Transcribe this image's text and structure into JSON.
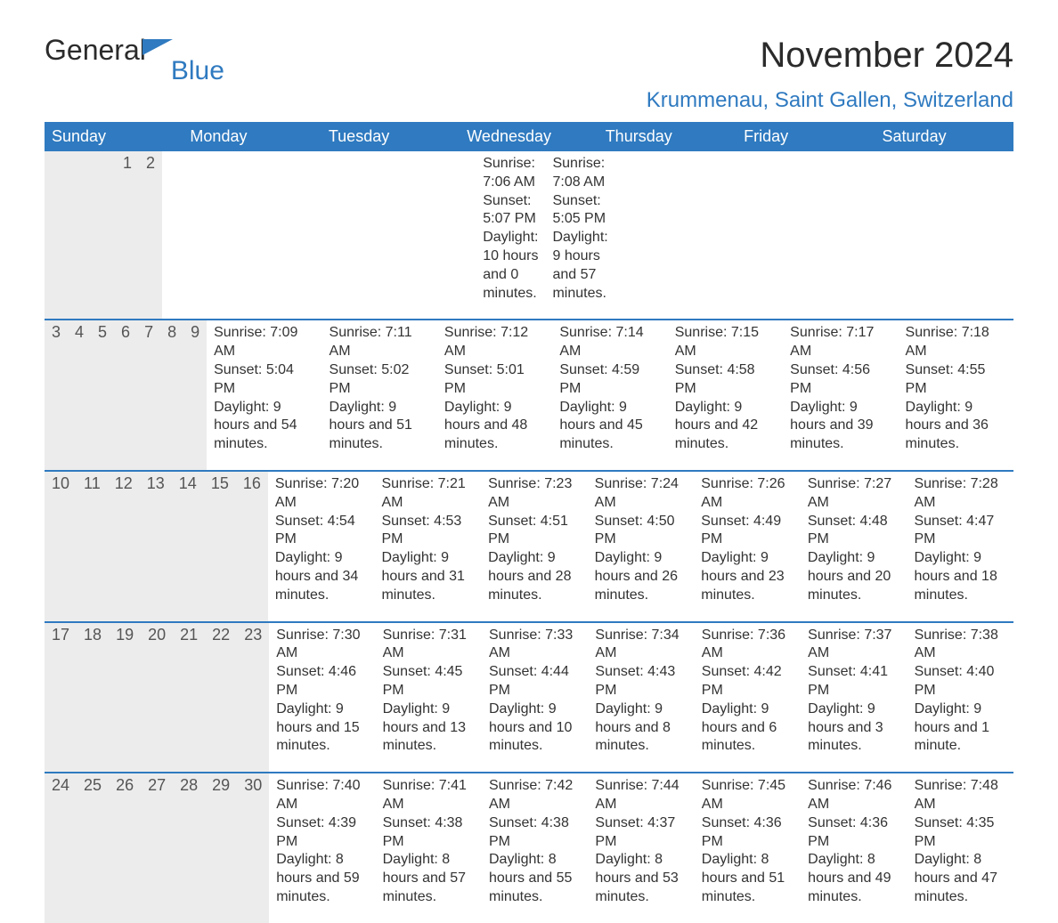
{
  "brand": {
    "word1": "General",
    "word2": "Blue",
    "color_primary": "#2f7ac0"
  },
  "title": {
    "month": "November 2024",
    "location": "Krummenau, Saint Gallen, Switzerland"
  },
  "calendar": {
    "day_names": [
      "Sunday",
      "Monday",
      "Tuesday",
      "Wednesday",
      "Thursday",
      "Friday",
      "Saturday"
    ],
    "header_bg": "#2f7ac0",
    "header_fg": "#ffffff",
    "band_bg": "#ececec",
    "text_color": "#333333",
    "days": [
      {
        "day": 1,
        "dow": 5,
        "sunrise": "7:06 AM",
        "sunset": "5:07 PM",
        "daylight": "10 hours and 0 minutes."
      },
      {
        "day": 2,
        "dow": 6,
        "sunrise": "7:08 AM",
        "sunset": "5:05 PM",
        "daylight": "9 hours and 57 minutes."
      },
      {
        "day": 3,
        "dow": 0,
        "sunrise": "7:09 AM",
        "sunset": "5:04 PM",
        "daylight": "9 hours and 54 minutes."
      },
      {
        "day": 4,
        "dow": 1,
        "sunrise": "7:11 AM",
        "sunset": "5:02 PM",
        "daylight": "9 hours and 51 minutes."
      },
      {
        "day": 5,
        "dow": 2,
        "sunrise": "7:12 AM",
        "sunset": "5:01 PM",
        "daylight": "9 hours and 48 minutes."
      },
      {
        "day": 6,
        "dow": 3,
        "sunrise": "7:14 AM",
        "sunset": "4:59 PM",
        "daylight": "9 hours and 45 minutes."
      },
      {
        "day": 7,
        "dow": 4,
        "sunrise": "7:15 AM",
        "sunset": "4:58 PM",
        "daylight": "9 hours and 42 minutes."
      },
      {
        "day": 8,
        "dow": 5,
        "sunrise": "7:17 AM",
        "sunset": "4:56 PM",
        "daylight": "9 hours and 39 minutes."
      },
      {
        "day": 9,
        "dow": 6,
        "sunrise": "7:18 AM",
        "sunset": "4:55 PM",
        "daylight": "9 hours and 36 minutes."
      },
      {
        "day": 10,
        "dow": 0,
        "sunrise": "7:20 AM",
        "sunset": "4:54 PM",
        "daylight": "9 hours and 34 minutes."
      },
      {
        "day": 11,
        "dow": 1,
        "sunrise": "7:21 AM",
        "sunset": "4:53 PM",
        "daylight": "9 hours and 31 minutes."
      },
      {
        "day": 12,
        "dow": 2,
        "sunrise": "7:23 AM",
        "sunset": "4:51 PM",
        "daylight": "9 hours and 28 minutes."
      },
      {
        "day": 13,
        "dow": 3,
        "sunrise": "7:24 AM",
        "sunset": "4:50 PM",
        "daylight": "9 hours and 26 minutes."
      },
      {
        "day": 14,
        "dow": 4,
        "sunrise": "7:26 AM",
        "sunset": "4:49 PM",
        "daylight": "9 hours and 23 minutes."
      },
      {
        "day": 15,
        "dow": 5,
        "sunrise": "7:27 AM",
        "sunset": "4:48 PM",
        "daylight": "9 hours and 20 minutes."
      },
      {
        "day": 16,
        "dow": 6,
        "sunrise": "7:28 AM",
        "sunset": "4:47 PM",
        "daylight": "9 hours and 18 minutes."
      },
      {
        "day": 17,
        "dow": 0,
        "sunrise": "7:30 AM",
        "sunset": "4:46 PM",
        "daylight": "9 hours and 15 minutes."
      },
      {
        "day": 18,
        "dow": 1,
        "sunrise": "7:31 AM",
        "sunset": "4:45 PM",
        "daylight": "9 hours and 13 minutes."
      },
      {
        "day": 19,
        "dow": 2,
        "sunrise": "7:33 AM",
        "sunset": "4:44 PM",
        "daylight": "9 hours and 10 minutes."
      },
      {
        "day": 20,
        "dow": 3,
        "sunrise": "7:34 AM",
        "sunset": "4:43 PM",
        "daylight": "9 hours and 8 minutes."
      },
      {
        "day": 21,
        "dow": 4,
        "sunrise": "7:36 AM",
        "sunset": "4:42 PM",
        "daylight": "9 hours and 6 minutes."
      },
      {
        "day": 22,
        "dow": 5,
        "sunrise": "7:37 AM",
        "sunset": "4:41 PM",
        "daylight": "9 hours and 3 minutes."
      },
      {
        "day": 23,
        "dow": 6,
        "sunrise": "7:38 AM",
        "sunset": "4:40 PM",
        "daylight": "9 hours and 1 minute."
      },
      {
        "day": 24,
        "dow": 0,
        "sunrise": "7:40 AM",
        "sunset": "4:39 PM",
        "daylight": "8 hours and 59 minutes."
      },
      {
        "day": 25,
        "dow": 1,
        "sunrise": "7:41 AM",
        "sunset": "4:38 PM",
        "daylight": "8 hours and 57 minutes."
      },
      {
        "day": 26,
        "dow": 2,
        "sunrise": "7:42 AM",
        "sunset": "4:38 PM",
        "daylight": "8 hours and 55 minutes."
      },
      {
        "day": 27,
        "dow": 3,
        "sunrise": "7:44 AM",
        "sunset": "4:37 PM",
        "daylight": "8 hours and 53 minutes."
      },
      {
        "day": 28,
        "dow": 4,
        "sunrise": "7:45 AM",
        "sunset": "4:36 PM",
        "daylight": "8 hours and 51 minutes."
      },
      {
        "day": 29,
        "dow": 5,
        "sunrise": "7:46 AM",
        "sunset": "4:36 PM",
        "daylight": "8 hours and 49 minutes."
      },
      {
        "day": 30,
        "dow": 6,
        "sunrise": "7:48 AM",
        "sunset": "4:35 PM",
        "daylight": "8 hours and 47 minutes."
      }
    ],
    "labels": {
      "sunrise": "Sunrise:",
      "sunset": "Sunset:",
      "daylight": "Daylight:"
    }
  }
}
